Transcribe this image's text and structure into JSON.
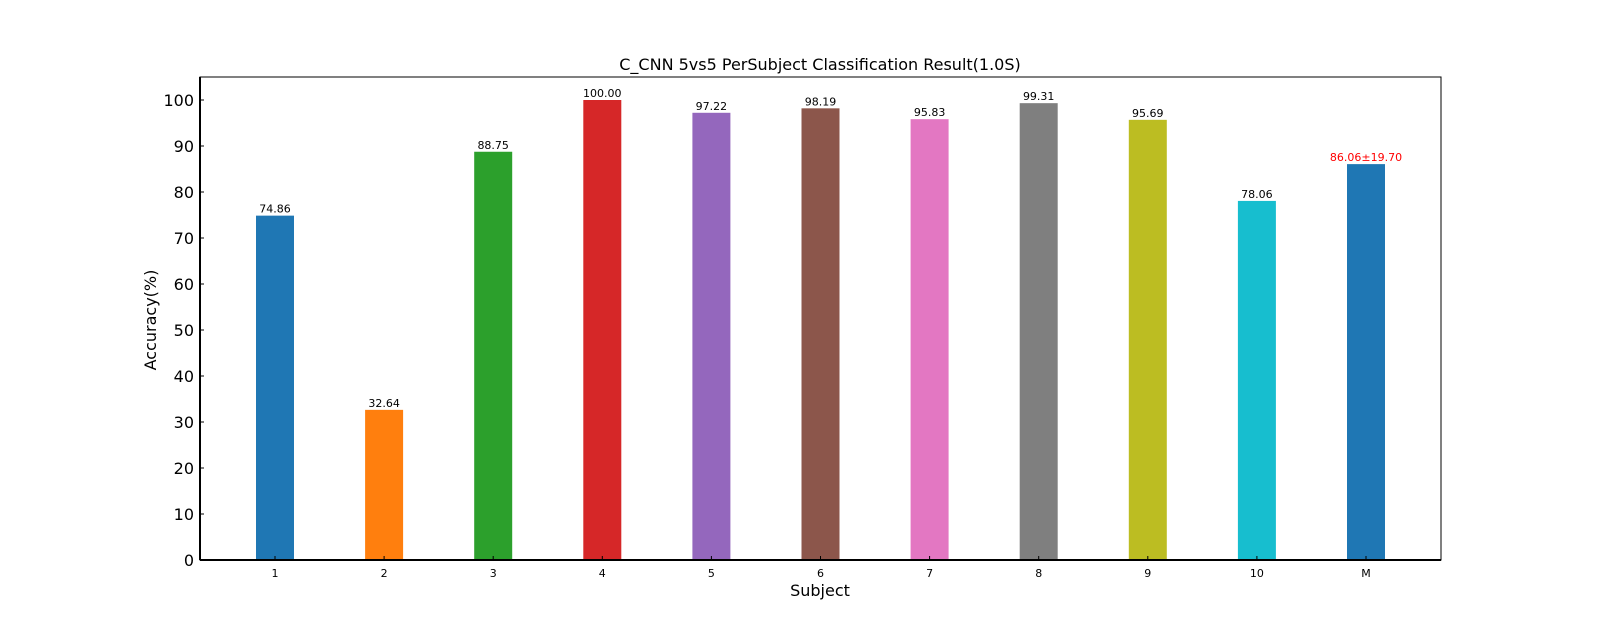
{
  "chart_data": {
    "type": "bar",
    "title": "C_CNN 5vs5 PerSubject Classification Result(1.0S)",
    "xlabel": "Subject",
    "ylabel": "Accuracy(%)",
    "ylim": [
      0,
      105
    ],
    "yticks": [
      0,
      10,
      20,
      30,
      40,
      50,
      60,
      70,
      80,
      90,
      100
    ],
    "grid": false,
    "categories": [
      "1",
      "2",
      "3",
      "4",
      "5",
      "6",
      "7",
      "8",
      "9",
      "10",
      "M"
    ],
    "values": [
      74.86,
      32.64,
      88.75,
      100.0,
      97.22,
      98.19,
      95.83,
      99.31,
      95.69,
      78.06,
      86.06
    ],
    "value_labels": [
      "74.86",
      "32.64",
      "88.75",
      "100.00",
      "97.22",
      "98.19",
      "95.83",
      "99.31",
      "95.69",
      "78.06",
      "86.06±19.70"
    ],
    "colors": [
      "#1f77b4",
      "#ff7f0e",
      "#2ca02c",
      "#d62728",
      "#9467bd",
      "#8c564b",
      "#e377c2",
      "#7f7f7f",
      "#bcbd22",
      "#17becf",
      "#1f77b4"
    ],
    "label_colors": [
      "#000000",
      "#000000",
      "#000000",
      "#000000",
      "#000000",
      "#000000",
      "#000000",
      "#000000",
      "#000000",
      "#000000",
      "#ff0000"
    ]
  }
}
